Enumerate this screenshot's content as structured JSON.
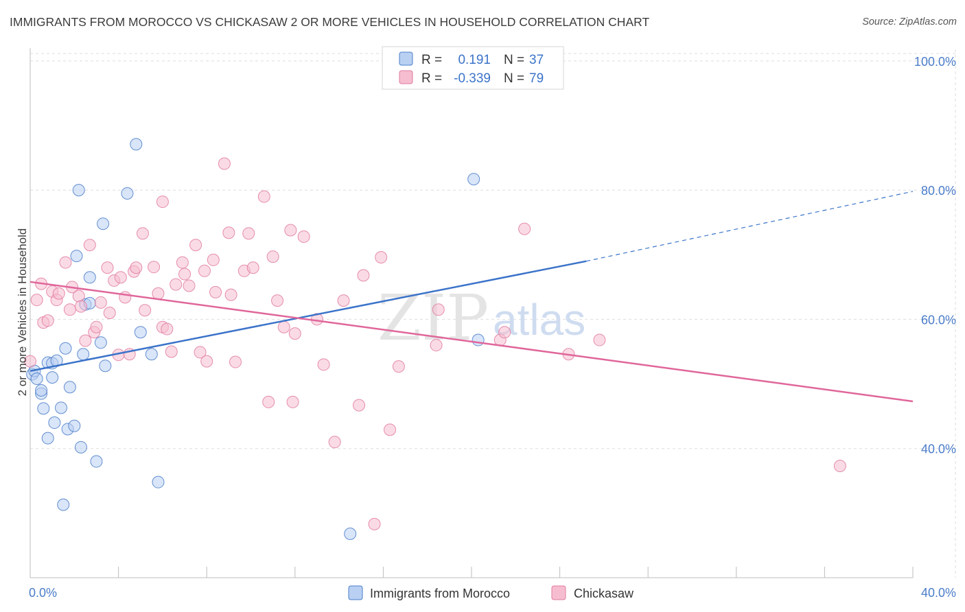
{
  "title": "IMMIGRANTS FROM MOROCCO VS CHICKASAW 2 OR MORE VEHICLES IN HOUSEHOLD CORRELATION CHART",
  "source": "Source: ZipAtlas.com",
  "watermark": {
    "zip": "ZIP",
    "atlas": "atlas"
  },
  "colors": {
    "blue": "#4a7cc9",
    "blue_fill": "#b9d0f2",
    "blue_line": "#3b73c9",
    "pink": "#e07aa0",
    "pink_fill": "#f6bdd0",
    "pink_line": "#e0669a",
    "grid": "#dddddd"
  },
  "legend": {
    "rows": [
      {
        "r_label": "R =",
        "r_value": "0.191",
        "n_label": "N =",
        "n_value": "37"
      },
      {
        "r_label": "R =",
        "r_value": "-0.339",
        "n_label": "N =",
        "n_value": "79"
      }
    ]
  },
  "chart_data": {
    "type": "scatter",
    "title": "IMMIGRANTS FROM MOROCCO VS CHICKASAW 2 OR MORE VEHICLES IN HOUSEHOLD CORRELATION CHART",
    "xlabel": "",
    "ylabel": "2 or more Vehicles in Household",
    "xlim": [
      0,
      40
    ],
    "ylim": [
      20,
      102
    ],
    "x_tick_labels": [
      "0.0%",
      "40.0%"
    ],
    "y_ticks": [
      40,
      60,
      80,
      100
    ],
    "y_tick_labels": [
      "40.0%",
      "60.0%",
      "80.0%",
      "100.0%"
    ],
    "grid": true,
    "legend_position": "bottom",
    "series": [
      {
        "name": "Immigrants from Morocco",
        "color": "#4a7cc9",
        "trend": {
          "x": [
            0,
            25.2
          ],
          "y": [
            52.0,
            69.0
          ],
          "dashed_to": [
            40,
            79.8
          ]
        },
        "points": [
          [
            0.1,
            51.5
          ],
          [
            0.2,
            52.0
          ],
          [
            0.3,
            50.8
          ],
          [
            0.5,
            48.5
          ],
          [
            0.5,
            49.0
          ],
          [
            0.6,
            46.2
          ],
          [
            0.8,
            41.6
          ],
          [
            0.8,
            53.3
          ],
          [
            1.0,
            53.2
          ],
          [
            1.0,
            51.0
          ],
          [
            1.1,
            44.0
          ],
          [
            1.2,
            53.6
          ],
          [
            1.4,
            46.3
          ],
          [
            1.5,
            31.3
          ],
          [
            1.6,
            55.5
          ],
          [
            1.7,
            43.0
          ],
          [
            1.8,
            49.5
          ],
          [
            2.0,
            43.5
          ],
          [
            2.1,
            69.8
          ],
          [
            2.2,
            80.0
          ],
          [
            2.3,
            40.2
          ],
          [
            2.4,
            54.6
          ],
          [
            2.5,
            62.3
          ],
          [
            2.7,
            62.5
          ],
          [
            2.7,
            66.5
          ],
          [
            3.0,
            38.0
          ],
          [
            3.2,
            56.4
          ],
          [
            3.3,
            74.8
          ],
          [
            3.4,
            52.8
          ],
          [
            4.4,
            79.5
          ],
          [
            4.8,
            87.1
          ],
          [
            5.0,
            58.0
          ],
          [
            5.5,
            54.6
          ],
          [
            5.8,
            34.8
          ],
          [
            14.5,
            26.8
          ],
          [
            20.1,
            81.7
          ],
          [
            20.3,
            56.8
          ]
        ]
      },
      {
        "name": "Chickasaw",
        "color": "#e07aa0",
        "trend": {
          "x": [
            0,
            40
          ],
          "y": [
            65.8,
            47.3
          ]
        },
        "points": [
          [
            0.0,
            53.5
          ],
          [
            0.3,
            63.0
          ],
          [
            0.5,
            65.5
          ],
          [
            0.6,
            59.5
          ],
          [
            0.8,
            59.8
          ],
          [
            1.0,
            64.3
          ],
          [
            1.2,
            63.0
          ],
          [
            1.3,
            64.0
          ],
          [
            1.6,
            68.8
          ],
          [
            1.8,
            61.5
          ],
          [
            1.9,
            65.0
          ],
          [
            2.2,
            63.6
          ],
          [
            2.3,
            62.0
          ],
          [
            2.5,
            56.7
          ],
          [
            2.7,
            71.5
          ],
          [
            2.9,
            58.0
          ],
          [
            3.0,
            58.8
          ],
          [
            3.2,
            62.6
          ],
          [
            3.5,
            68.0
          ],
          [
            3.6,
            61.0
          ],
          [
            3.8,
            66.0
          ],
          [
            4.0,
            54.5
          ],
          [
            4.1,
            66.5
          ],
          [
            4.3,
            63.4
          ],
          [
            4.5,
            54.6
          ],
          [
            4.7,
            67.4
          ],
          [
            4.8,
            68.0
          ],
          [
            5.1,
            73.3
          ],
          [
            5.2,
            61.4
          ],
          [
            5.6,
            68.1
          ],
          [
            5.8,
            64.0
          ],
          [
            6.0,
            78.2
          ],
          [
            6.0,
            58.8
          ],
          [
            6.2,
            58.5
          ],
          [
            6.4,
            55.0
          ],
          [
            6.6,
            65.4
          ],
          [
            6.9,
            68.8
          ],
          [
            7.0,
            67.0
          ],
          [
            7.2,
            65.2
          ],
          [
            7.5,
            71.5
          ],
          [
            7.7,
            54.9
          ],
          [
            7.9,
            67.5
          ],
          [
            8.0,
            53.5
          ],
          [
            8.3,
            69.2
          ],
          [
            8.4,
            64.2
          ],
          [
            8.8,
            84.1
          ],
          [
            9.0,
            73.4
          ],
          [
            9.1,
            63.8
          ],
          [
            9.3,
            53.4
          ],
          [
            9.7,
            67.5
          ],
          [
            9.9,
            73.3
          ],
          [
            10.1,
            68.0
          ],
          [
            10.6,
            79.0
          ],
          [
            10.8,
            47.2
          ],
          [
            11.0,
            69.7
          ],
          [
            11.2,
            62.9
          ],
          [
            11.5,
            58.8
          ],
          [
            11.8,
            73.8
          ],
          [
            11.9,
            47.2
          ],
          [
            12.0,
            57.8
          ],
          [
            12.4,
            72.8
          ],
          [
            13.0,
            60.0
          ],
          [
            13.3,
            53.0
          ],
          [
            13.8,
            41.0
          ],
          [
            14.2,
            62.9
          ],
          [
            14.9,
            46.7
          ],
          [
            15.1,
            66.8
          ],
          [
            15.6,
            28.3
          ],
          [
            15.9,
            69.6
          ],
          [
            16.3,
            42.9
          ],
          [
            16.7,
            52.7
          ],
          [
            18.4,
            56.0
          ],
          [
            18.5,
            61.5
          ],
          [
            21.3,
            56.8
          ],
          [
            21.5,
            58.0
          ],
          [
            22.4,
            74.0
          ],
          [
            24.4,
            54.6
          ],
          [
            25.8,
            56.8
          ],
          [
            36.7,
            37.3
          ]
        ]
      }
    ]
  }
}
